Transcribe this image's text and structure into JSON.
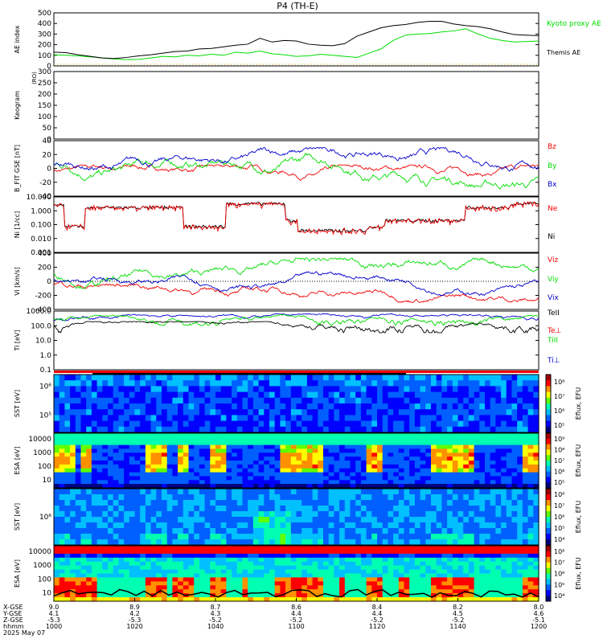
{
  "title": "P4 (TH-E)",
  "colors": {
    "black": "#000000",
    "green": "#00dd00",
    "red": "#ee0000",
    "blue": "#0000cc"
  },
  "chart_data": [
    {
      "type": "line",
      "panel": "ae",
      "ylabel": "AE index",
      "ylim": [
        0,
        500
      ],
      "yticks": [
        "500",
        "400",
        "300",
        "200",
        "100",
        "0"
      ],
      "x": [
        1000,
        1005,
        1010,
        1015,
        1020,
        1025,
        1030,
        1035,
        1040,
        1045,
        1050,
        1055,
        1060,
        1065,
        1070,
        1075,
        1080,
        1085,
        1090,
        1095,
        1100,
        1105,
        1110,
        1115,
        1120,
        1125,
        1130,
        1135,
        1140,
        1145,
        1150,
        1155,
        1160,
        1165,
        1170,
        1175,
        1180,
        1185,
        1190,
        1195,
        1200
      ],
      "series": [
        {
          "name": "Kyoto proxy AE",
          "color": "green",
          "values": [
            105,
            100,
            95,
            85,
            75,
            65,
            60,
            62,
            75,
            90,
            85,
            100,
            95,
            110,
            100,
            130,
            120,
            140,
            115,
            105,
            90,
            95,
            110,
            100,
            90,
            80,
            120,
            160,
            240,
            290,
            300,
            305,
            320,
            330,
            350,
            300,
            260,
            240,
            225,
            230,
            235
          ]
        },
        {
          "name": "Themis AE",
          "color": "black",
          "values": [
            130,
            125,
            105,
            90,
            75,
            70,
            80,
            95,
            105,
            120,
            135,
            140,
            160,
            165,
            180,
            195,
            205,
            260,
            225,
            240,
            235,
            205,
            195,
            190,
            210,
            280,
            320,
            360,
            380,
            390,
            410,
            420,
            420,
            395,
            380,
            370,
            350,
            320,
            295,
            290,
            285
          ]
        }
      ]
    },
    {
      "type": "heatmap",
      "panel": "keogram",
      "ylabel": "Keogram",
      "ylim": [
        0,
        300
      ],
      "yticks": [
        "300",
        "250",
        "200",
        "150",
        "100",
        "50",
        "0"
      ],
      "y2label": "(RO)"
    },
    {
      "type": "line",
      "panel": "b",
      "ylabel": "B_FIT GSE [nT]",
      "ylim": [
        -40,
        40
      ],
      "yticks": [
        "40",
        "20",
        "0",
        "-20",
        "-40"
      ],
      "series": [
        {
          "name": "Bz",
          "color": "red"
        },
        {
          "name": "By",
          "color": "green"
        },
        {
          "name": "Bx",
          "color": "blue"
        }
      ]
    },
    {
      "type": "line",
      "panel": "ni",
      "ylabel": "Ni [1/cc]",
      "yscale": "log",
      "yticks": [
        "10.000",
        "1.000",
        "0.100",
        "0.010",
        "0.001"
      ],
      "series": [
        {
          "name": "Ne",
          "color": "red"
        },
        {
          "name": "Ni",
          "color": "black"
        }
      ]
    },
    {
      "type": "line",
      "panel": "vi",
      "ylabel": "Vi [km/s]",
      "ylim": [
        -400,
        400
      ],
      "yticks": [
        "400",
        "200",
        "0",
        "-200",
        "-400"
      ],
      "series": [
        {
          "name": "Viz",
          "color": "red"
        },
        {
          "name": "Viy",
          "color": "green"
        },
        {
          "name": "Vix",
          "color": "blue"
        }
      ]
    },
    {
      "type": "line",
      "panel": "ti",
      "ylabel": "Ti [eV]",
      "yscale": "log",
      "yticks": [
        "1000.0",
        "100.0",
        "10.0",
        "1.0",
        "0.1"
      ],
      "series": [
        {
          "name": "TeII",
          "color": "black"
        },
        {
          "name": "Te⊥",
          "color": "red"
        },
        {
          "name": "TiII",
          "color": "green"
        },
        {
          "name": "Ti⊥",
          "color": "blue"
        }
      ]
    },
    {
      "type": "heatmap",
      "panel": "sst_e",
      "ylabel": "SST [eV]",
      "yticks": [
        "10⁶",
        "10⁵"
      ],
      "cbar": [
        "10⁸",
        "10⁷",
        "10⁶",
        "10⁵"
      ],
      "cbar_label": "Eflux, EFU"
    },
    {
      "type": "heatmap",
      "panel": "esa_e",
      "ylabel": "ESA [eV]",
      "yticks": [
        "10000",
        "1000",
        "100",
        "10"
      ],
      "cbar": [
        "10⁹",
        "10⁸",
        "10⁷",
        "10⁶",
        "10⁵"
      ],
      "cbar_label": "Eflux, EFU"
    },
    {
      "type": "heatmap",
      "panel": "sst_i",
      "ylabel": "SST [eV]",
      "yticks": [
        "10⁶"
      ],
      "cbar": [
        "10⁸",
        "10⁷",
        "10⁶",
        "10⁵",
        "10⁴"
      ],
      "cbar_label": "Eflux, EFU"
    },
    {
      "type": "heatmap",
      "panel": "esa_i",
      "ylabel": "ESA [eV]",
      "yticks": [
        "10000",
        "1000",
        "100",
        "10"
      ],
      "cbar": [
        "10⁸",
        "10⁷",
        "10⁶",
        "10⁵",
        "10⁴"
      ],
      "cbar_label": "Eflux, EFU"
    }
  ],
  "xaxis": {
    "row_labels": [
      "X-GSE",
      "Y-GSE",
      "Z-GSE",
      "hhmm",
      "2025 May 07"
    ],
    "ticks": [
      {
        "x": "9.0",
        "y": "4.1",
        "z": "-5.3",
        "t": "1000"
      },
      {
        "x": "8.9",
        "y": "4.2",
        "z": "-5.3",
        "t": "1020"
      },
      {
        "x": "8.7",
        "y": "4.3",
        "z": "-5.2",
        "t": "1040"
      },
      {
        "x": "8.6",
        "y": "4.4",
        "z": "-5.2",
        "t": "1100"
      },
      {
        "x": "8.4",
        "y": "4.4",
        "z": "-5.2",
        "t": "1120"
      },
      {
        "x": "8.2",
        "y": "4.5",
        "z": "-5.2",
        "t": "1140"
      },
      {
        "x": "8.0",
        "y": "4.6",
        "z": "-5.1",
        "t": "1200"
      }
    ]
  }
}
